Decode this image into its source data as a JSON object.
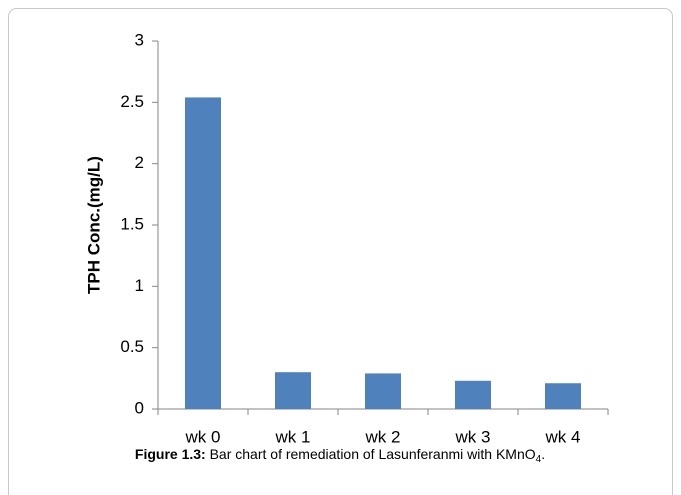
{
  "chart_data": {
    "type": "bar",
    "y_axis_label": "TPH  Conc.(mg/L)",
    "categories": [
      "wk 0",
      "wk 1",
      "wk 2",
      "wk 3",
      "wk 4"
    ],
    "values": [
      2.54,
      0.3,
      0.29,
      0.23,
      0.21
    ],
    "color": "#4f81bd",
    "ylim": [
      0,
      3
    ],
    "yticks": [
      0,
      0.5,
      1,
      1.5,
      2,
      2.5,
      3
    ],
    "grid": false,
    "caption_label": "Figure 1.3:",
    "caption_text": " Bar chart of remediation of Lasunferanmi with KMnO",
    "caption_sub": "4",
    "caption_end": "."
  }
}
